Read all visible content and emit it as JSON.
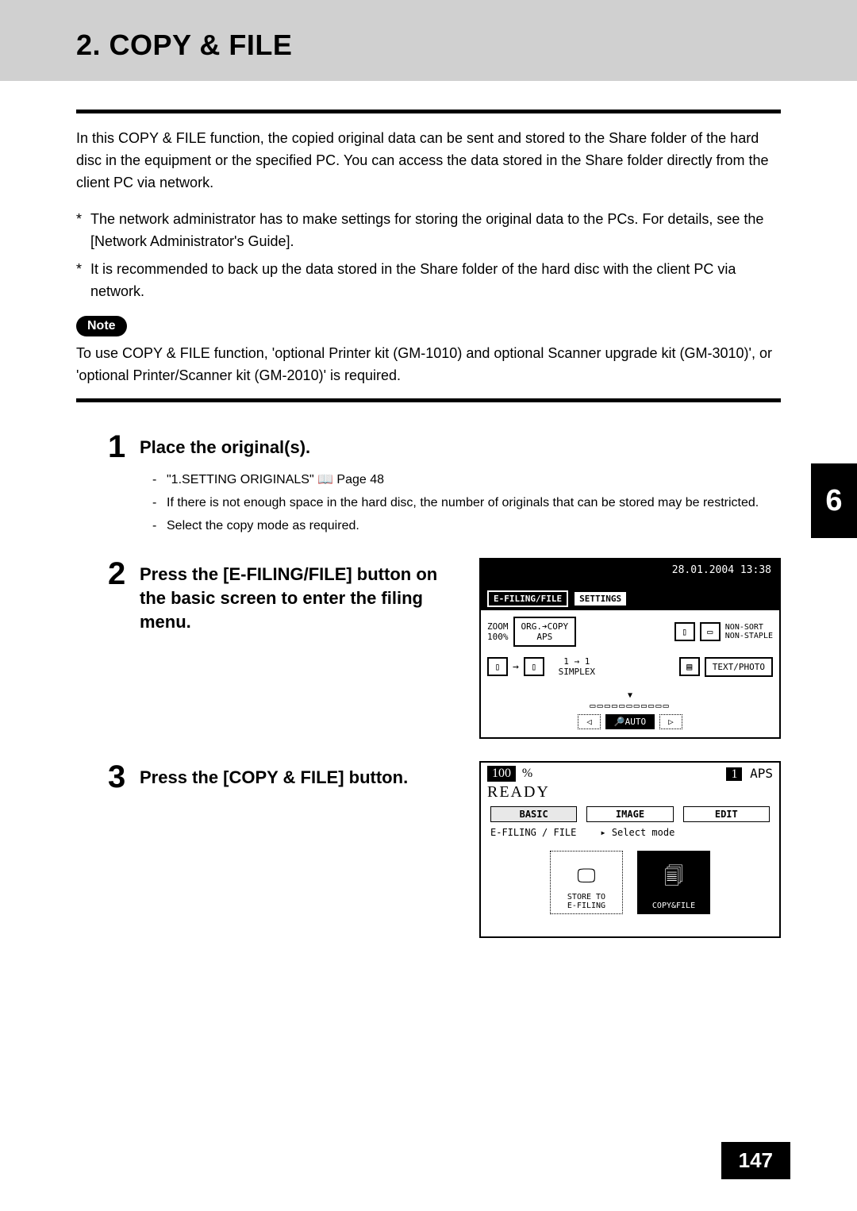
{
  "header": {
    "title": "2. COPY & FILE"
  },
  "intro": "In this COPY & FILE function, the copied original data can be sent and stored to the Share folder of the hard disc in the equipment or the specified PC. You can access the data stored in the Share folder directly from the client PC via network.",
  "bullets": [
    "The network administrator has to make settings for storing the original data to the PCs. For details, see the [Network Administrator's Guide].",
    "It is recommended to back up the data stored in the Share folder of the hard disc with the client PC via network."
  ],
  "note": {
    "label": "Note",
    "text": "To use COPY & FILE function, 'optional Printer kit (GM-1010) and optional Scanner upgrade kit (GM-3010)', or 'optional Printer/Scanner kit (GM-2010)' is required."
  },
  "steps": {
    "s1": {
      "num": "1",
      "title": "Place the original(s).",
      "sub": [
        "\"1.SETTING ORIGINALS\" 📖 Page 48",
        "If there is not enough space in the hard disc, the number of originals that can be stored may be restricted.",
        "Select the copy mode as required."
      ]
    },
    "s2": {
      "num": "2",
      "title": "Press the [E-FILING/FILE] button on the basic screen to enter the filing menu."
    },
    "s3": {
      "num": "3",
      "title": "Press the [COPY & FILE] button."
    }
  },
  "lcd1": {
    "datetime": "28.01.2004 13:38",
    "tabs": {
      "efiling": "E-FILING/FILE",
      "settings": "SETTINGS"
    },
    "zoom_label": "ZOOM",
    "zoom_value": "100%",
    "org_copy": "ORG.➔COPY\nAPS",
    "nonsort": "NON-SORT\nNON-STAPLE",
    "simplex": "1 → 1\nSIMPLEX",
    "textphoto": "TEXT/PHOTO",
    "tray_slots": "▭▭▭▭▭▭▭▭▭▭▭",
    "tray_left": "◁",
    "tray_auto": "🔎AUTO",
    "tray_right": "▷"
  },
  "lcd2": {
    "zoom": "100",
    "pct": "%",
    "count": "1",
    "aps": "APS",
    "ready": "READY",
    "tabs": {
      "basic": "BASIC",
      "image": "IMAGE",
      "edit": "EDIT"
    },
    "sub_left": "E-FILING / FILE",
    "sub_right": "▸ Select mode",
    "btn_store": "STORE TO\nE-FILING",
    "btn_copyfile": "COPY&FILE"
  },
  "side": {
    "chapter": "6"
  },
  "footer": {
    "page": "147"
  },
  "colors": {
    "header_bg": "#d0d0d0",
    "black": "#000000",
    "white": "#ffffff"
  }
}
